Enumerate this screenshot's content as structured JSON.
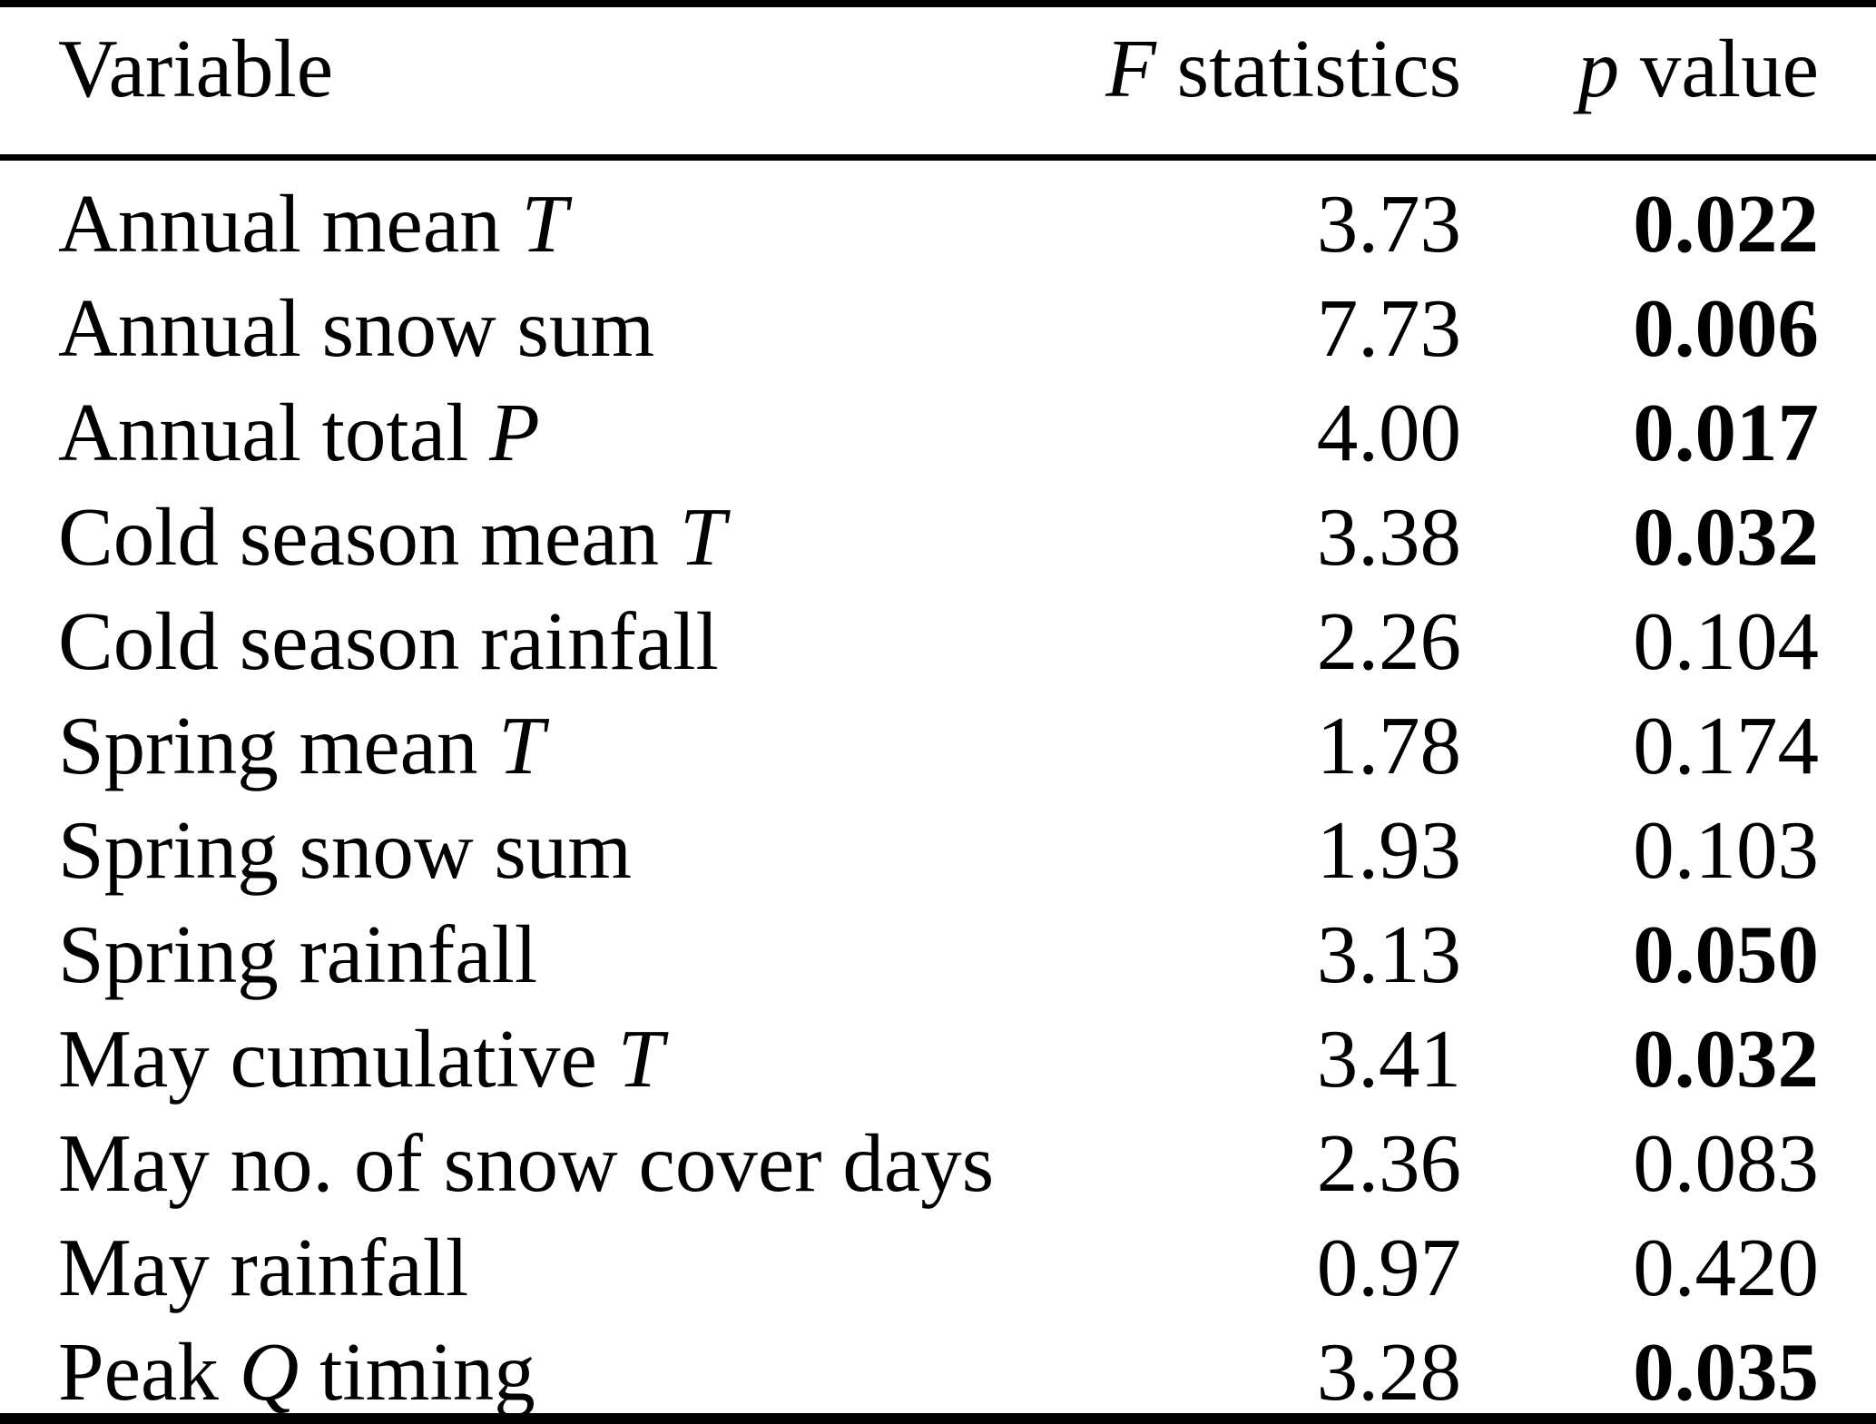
{
  "colors": {
    "text": "#000000",
    "background": "#ffffff"
  },
  "table": {
    "columns": [
      {
        "key": "variable",
        "label": "Variable"
      },
      {
        "key": "f",
        "label_italic": "F",
        "label_rest": " statistics"
      },
      {
        "key": "p",
        "label_italic": "p",
        "label_rest": " value"
      }
    ],
    "rows": [
      {
        "var_pre": "Annual mean ",
        "var_italic": "T",
        "var_post": "",
        "f": "3.73",
        "p": "0.022",
        "p_significant": true
      },
      {
        "var_pre": "Annual snow sum",
        "var_italic": "",
        "var_post": "",
        "f": "7.73",
        "p": "0.006",
        "p_significant": true
      },
      {
        "var_pre": "Annual total ",
        "var_italic": "P",
        "var_post": "",
        "f": "4.00",
        "p": "0.017",
        "p_significant": true
      },
      {
        "var_pre": "Cold season mean ",
        "var_italic": "T",
        "var_post": "",
        "f": "3.38",
        "p": "0.032",
        "p_significant": true
      },
      {
        "var_pre": "Cold season rainfall",
        "var_italic": "",
        "var_post": "",
        "f": "2.26",
        "p": "0.104",
        "p_significant": false
      },
      {
        "var_pre": "Spring mean ",
        "var_italic": "T",
        "var_post": "",
        "f": "1.78",
        "p": "0.174",
        "p_significant": false
      },
      {
        "var_pre": "Spring snow sum",
        "var_italic": "",
        "var_post": "",
        "f": "1.93",
        "p": "0.103",
        "p_significant": false
      },
      {
        "var_pre": "Spring rainfall",
        "var_italic": "",
        "var_post": "",
        "f": "3.13",
        "p": "0.050",
        "p_significant": true
      },
      {
        "var_pre": "May cumulative ",
        "var_italic": "T",
        "var_post": "",
        "f": "3.41",
        "p": "0.032",
        "p_significant": true
      },
      {
        "var_pre": "May no. of snow cover days",
        "var_italic": "",
        "var_post": "",
        "f": "2.36",
        "p": "0.083",
        "p_significant": false
      },
      {
        "var_pre": "May rainfall",
        "var_italic": "",
        "var_post": "",
        "f": "0.97",
        "p": "0.420",
        "p_significant": false
      },
      {
        "var_pre": "Peak ",
        "var_italic": "Q",
        "var_post": " timing",
        "f": "3.28",
        "p": "0.035",
        "p_significant": true
      }
    ]
  }
}
